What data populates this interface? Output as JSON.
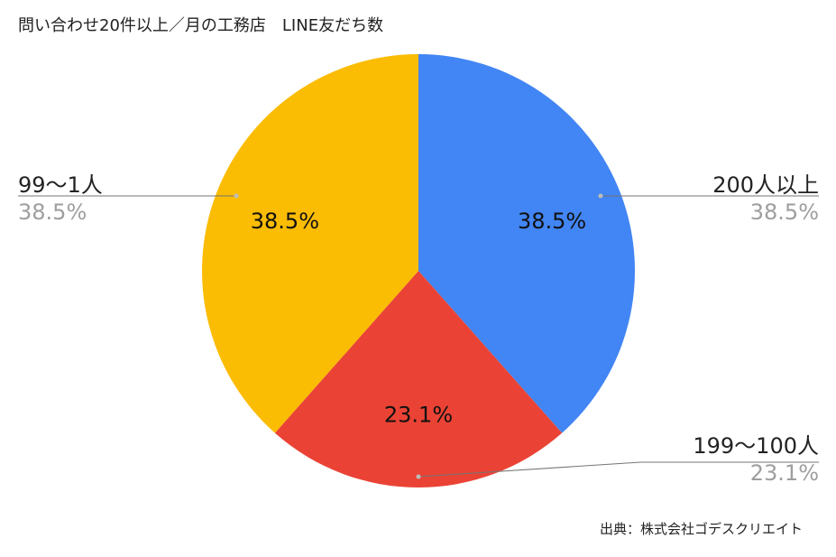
{
  "chart_data": {
    "type": "pie",
    "title": "問い合わせ20件以上／月の工務店　LINE友だち数",
    "slices": [
      {
        "name": "200人以上",
        "value": 38.5,
        "label": "38.5%",
        "color": "#4285f4"
      },
      {
        "name": "199〜100人",
        "value": 23.1,
        "label": "23.1%",
        "color": "#ea4335"
      },
      {
        "name": "99〜1人",
        "value": 38.5,
        "label": "38.5%",
        "color": "#fbbc04"
      }
    ],
    "start_angle_deg": 0,
    "direction": "clockwise",
    "legend": "callouts"
  },
  "source_note": "出典：株式会社ゴデスクリエイト"
}
